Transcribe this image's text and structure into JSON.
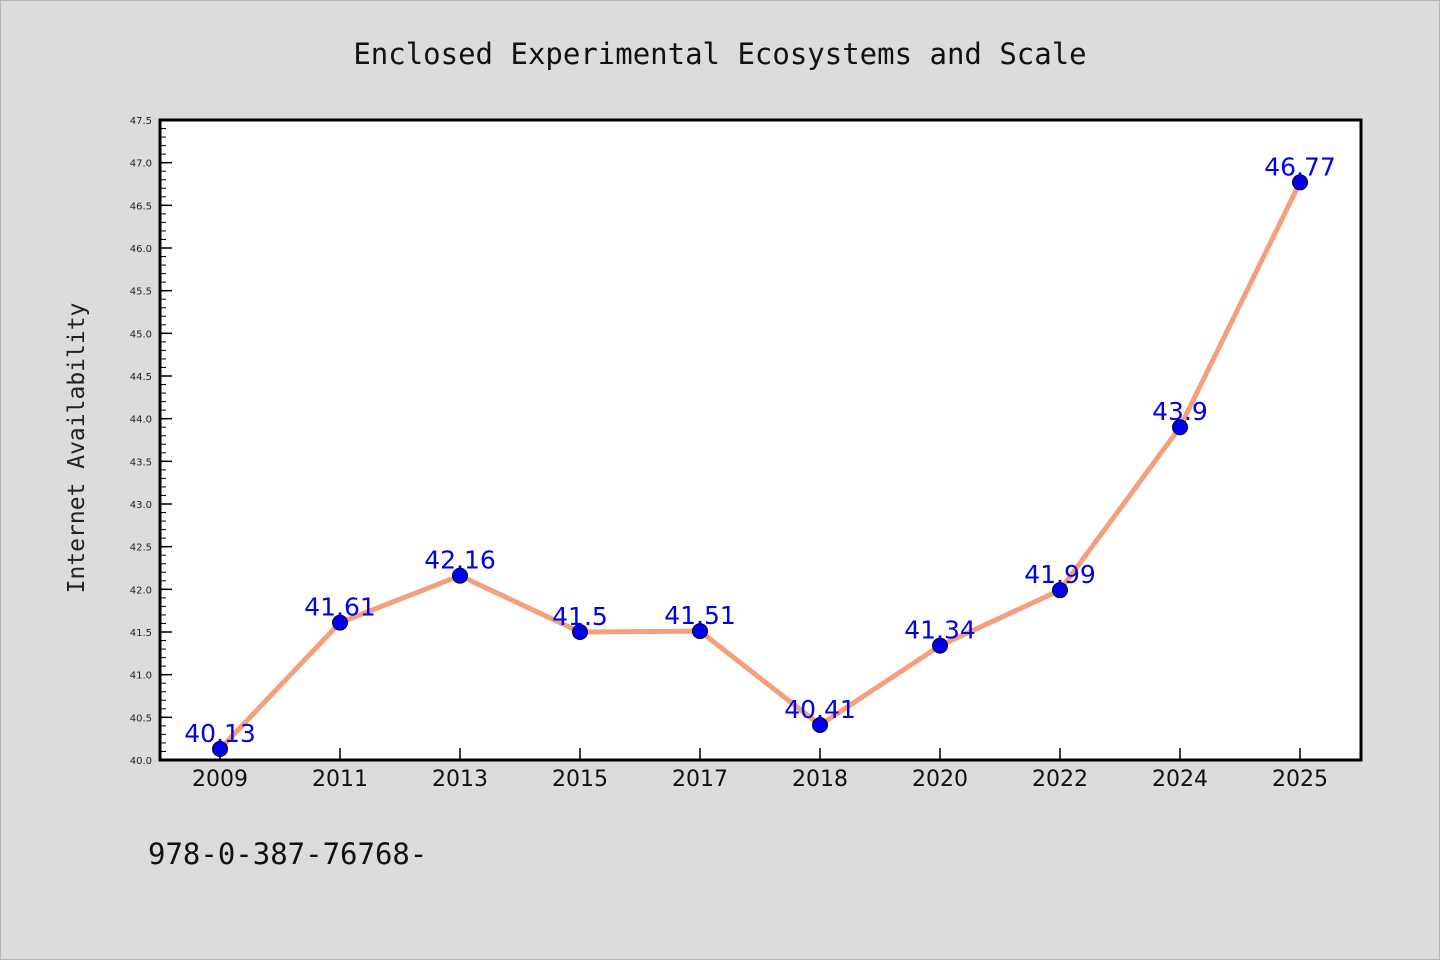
{
  "chart_data": {
    "type": "line",
    "title": "Enclosed Experimental Ecosystems and Scale",
    "xlabel": "",
    "ylabel": "Internet Availability",
    "categories": [
      "2009",
      "2011",
      "2013",
      "2015",
      "2017",
      "2018",
      "2020",
      "2022",
      "2024",
      "2025"
    ],
    "series": [
      {
        "values": [
          40.13,
          41.61,
          42.16,
          41.5,
          41.51,
          40.41,
          41.34,
          41.99,
          43.9,
          46.77
        ],
        "data_labels": [
          "40.13",
          "41.61",
          "42.16",
          "41.5",
          "41.51",
          "40.41",
          "41.34",
          "41.99",
          "43.9",
          "46.77"
        ]
      }
    ],
    "ylim": [
      40.0,
      47.5
    ],
    "yticks": [
      "40.0",
      "40.5",
      "41.0",
      "41.5",
      "42.0",
      "42.5",
      "43.0",
      "43.5",
      "44.0",
      "44.5",
      "45.0",
      "45.5",
      "46.0",
      "46.5",
      "47.0",
      "47.5"
    ],
    "grid": false,
    "legend": "none",
    "colors": {
      "line": "#f4a07e",
      "marker": "#0000ee",
      "label": "#0000ee",
      "background": "#dcdcdc",
      "plot_background": "#ffffff"
    }
  },
  "footnote": "978-0-387-76768-"
}
